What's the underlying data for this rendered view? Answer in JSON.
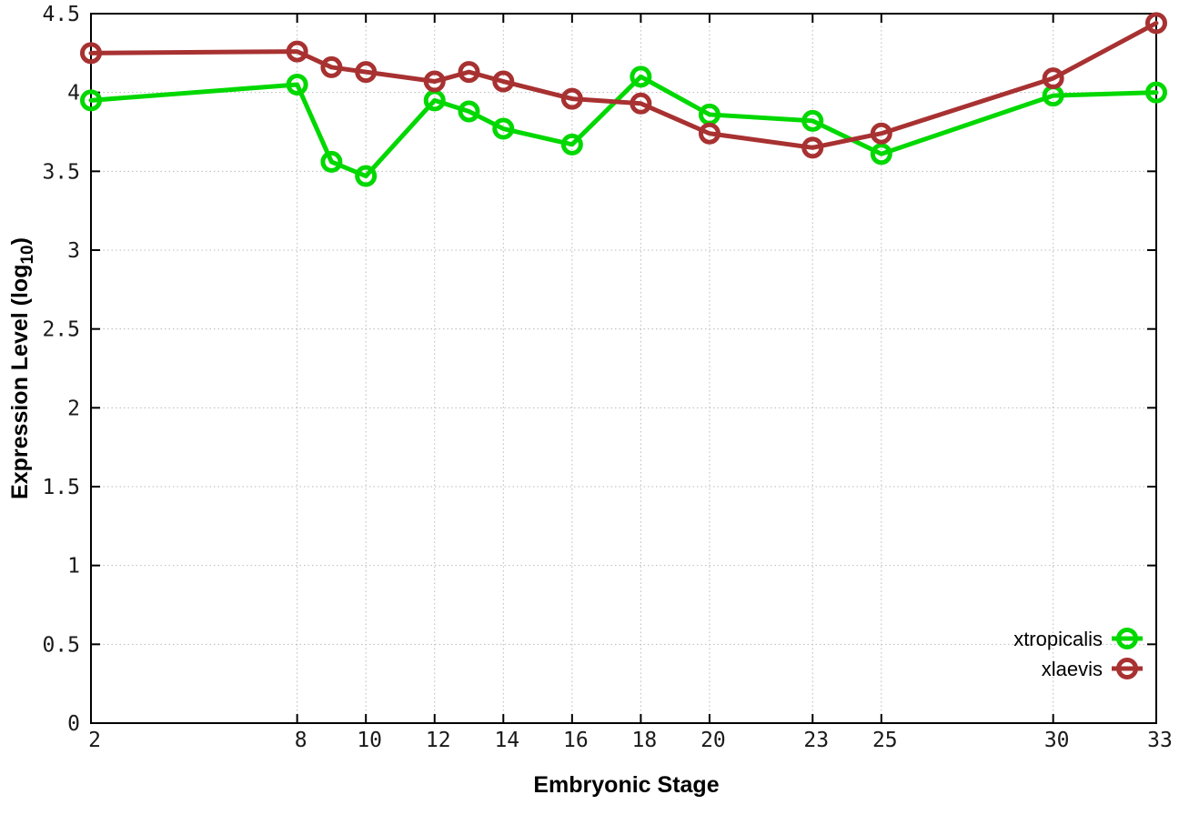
{
  "figure": {
    "background": "#ffffff",
    "border_color": "#000000",
    "grid_color": "#b9b9b9",
    "tick_label_color": "#1a1a1a",
    "axis_title_color": "#000000"
  },
  "chart_data": {
    "type": "line",
    "title": "",
    "xlabel": "Embryonic Stage",
    "ylabel": "Expression Level (log10)",
    "ylabel_parts": {
      "main": "Expression Level (log",
      "subscript": "10",
      "suffix": ")"
    },
    "x": [
      2,
      8,
      9,
      10,
      12,
      13,
      14,
      16,
      18,
      20,
      23,
      25,
      30,
      33
    ],
    "x_ticks": [
      2,
      8,
      10,
      12,
      14,
      16,
      18,
      20,
      23,
      25,
      30,
      33
    ],
    "x_tick_labels": [
      "2",
      "8",
      "10",
      "12",
      "14",
      "16",
      "18",
      "20",
      "23",
      "25",
      "30",
      "33"
    ],
    "y_ticks": [
      0,
      0.5,
      1,
      1.5,
      2,
      2.5,
      3,
      3.5,
      4,
      4.5
    ],
    "y_tick_labels": [
      "0",
      "0.5",
      "1",
      "1.5",
      "2",
      "2.5",
      "3",
      "3.5",
      "4",
      "4.5"
    ],
    "xlim": [
      2,
      33
    ],
    "ylim": [
      0,
      4.5
    ],
    "grid": true,
    "legend_position": "bottom-right-inside",
    "series": [
      {
        "name": "xtropicalis",
        "color": "#00d800",
        "values": [
          3.95,
          4.05,
          3.56,
          3.47,
          3.95,
          3.88,
          3.77,
          3.67,
          4.1,
          3.86,
          3.82,
          3.61,
          3.98,
          4.0
        ]
      },
      {
        "name": "xlaevis",
        "color": "#a83131",
        "values": [
          4.25,
          4.26,
          4.16,
          4.13,
          4.07,
          4.13,
          4.07,
          3.96,
          3.93,
          3.74,
          3.65,
          3.74,
          4.09,
          4.44
        ]
      }
    ]
  }
}
